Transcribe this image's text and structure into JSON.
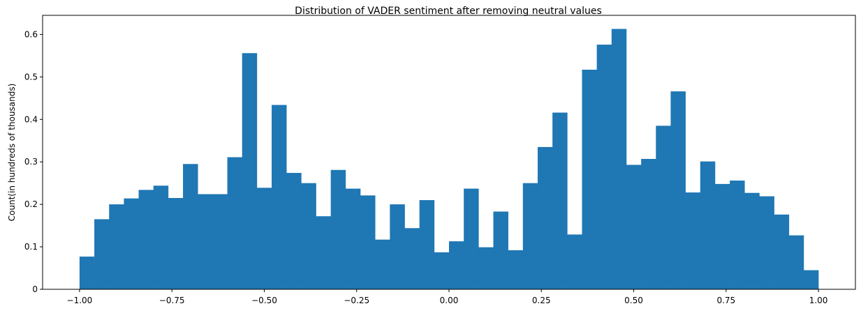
{
  "chart_data": {
    "type": "bar",
    "subtype": "histogram",
    "title": "Distribution of VADER sentiment after removing neutral values",
    "xlabel": "",
    "ylabel": "Count(in hundreds of thousands)",
    "xlim": [
      -1.1,
      1.1
    ],
    "ylim": [
      0,
      0.645
    ],
    "bin_range": [
      -1.0,
      1.0
    ],
    "bins": 50,
    "bar_color": "#1f77b4",
    "grid": false,
    "legend": "none",
    "xticks": [
      -1.0,
      -0.75,
      -0.5,
      -0.25,
      0.0,
      0.25,
      0.5,
      0.75,
      1.0
    ],
    "xtick_labels": [
      "−1.00",
      "−0.75",
      "−0.50",
      "−0.25",
      "0.00",
      "0.25",
      "0.50",
      "0.75",
      "1.00"
    ],
    "yticks": [
      0,
      0.1,
      0.2,
      0.3,
      0.4,
      0.5,
      0.6
    ],
    "ytick_labels": [
      "0",
      "0.1",
      "0.2",
      "0.3",
      "0.4",
      "0.5",
      "0.6"
    ],
    "values": [
      0.077,
      0.165,
      0.2,
      0.214,
      0.234,
      0.244,
      0.215,
      0.295,
      0.224,
      0.224,
      0.311,
      0.556,
      0.239,
      0.434,
      0.274,
      0.25,
      0.172,
      0.281,
      0.237,
      0.221,
      0.117,
      0.2,
      0.144,
      0.21,
      0.087,
      0.113,
      0.237,
      0.099,
      0.183,
      0.092,
      0.25,
      0.335,
      0.416,
      0.129,
      0.517,
      0.576,
      0.613,
      0.293,
      0.307,
      0.385,
      0.466,
      0.228,
      0.301,
      0.248,
      0.256,
      0.227,
      0.219,
      0.176,
      0.127,
      0.045
    ]
  }
}
